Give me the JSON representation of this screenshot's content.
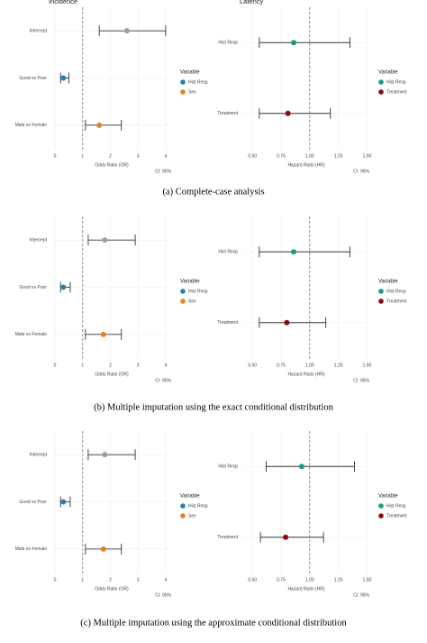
{
  "chart_data": [
    {
      "type": "forest",
      "title": "Incidence",
      "xlabel": "Odds Ratio (OR)",
      "note": "CI: 95%",
      "xlim": [
        -0.1,
        4.2
      ],
      "xticks": [
        0,
        1,
        2,
        3,
        4
      ],
      "refline": 1,
      "rows": [
        {
          "label": "Intercept",
          "estimate": 2.6,
          "lower": 1.6,
          "upper": 4.0,
          "color": "#9e9e9e"
        },
        {
          "label": "Good vs Poor",
          "estimate": 0.3,
          "lower": 0.2,
          "upper": 0.5,
          "color": "#2a7fb0"
        },
        {
          "label": "Male vs Female",
          "estimate": 1.6,
          "lower": 1.1,
          "upper": 2.4,
          "color": "#e6801e"
        }
      ],
      "legend_title": "Variable",
      "legend": [
        {
          "name": "Hist Resp",
          "color": "#2a7fb0"
        },
        {
          "name": "Sex",
          "color": "#e6801e"
        }
      ]
    },
    {
      "type": "forest",
      "title": "Latency",
      "xlabel": "Hazard Ratio (HR)",
      "note": "CI: 95%",
      "xlim": [
        0.42,
        1.52
      ],
      "xticks": [
        {
          "value": 0.5,
          "label": "0.50"
        },
        {
          "value": 0.75,
          "label": "0.75"
        },
        {
          "value": 1,
          "label": "1.00"
        },
        {
          "value": 1.25,
          "label": "1.25"
        },
        {
          "value": 1.5,
          "label": "1.50"
        }
      ],
      "refline": 1,
      "rows": [
        {
          "label": "Hist Resp",
          "estimate": 0.86,
          "lower": 0.56,
          "upper": 1.35,
          "color": "#1a9a86"
        },
        {
          "label": "Treatment",
          "estimate": 0.81,
          "lower": 0.56,
          "upper": 1.18,
          "color": "#8b0a0a"
        }
      ],
      "legend_title": "Variable",
      "legend": [
        {
          "name": "Hist Resp",
          "color": "#1a9a86"
        },
        {
          "name": "Treatment",
          "color": "#8b0a0a"
        }
      ]
    },
    {
      "type": "forest",
      "xlabel": "Odds Ratio (OR)",
      "note": "CI: 95%",
      "xlim": [
        -0.1,
        4.2
      ],
      "xticks": [
        0,
        1,
        2,
        3,
        4
      ],
      "refline": 1,
      "rows": [
        {
          "label": "Intercept",
          "estimate": 1.8,
          "lower": 1.2,
          "upper": 2.9,
          "color": "#9e9e9e"
        },
        {
          "label": "Good vs Poor",
          "estimate": 0.3,
          "lower": 0.2,
          "upper": 0.55,
          "color": "#2a7fb0"
        },
        {
          "label": "Male vs Female",
          "estimate": 1.75,
          "lower": 1.1,
          "upper": 2.4,
          "color": "#e6801e"
        }
      ],
      "legend_title": "Variable",
      "legend": [
        {
          "name": "Hist Resp",
          "color": "#2a7fb0"
        },
        {
          "name": "Sex",
          "color": "#e6801e"
        }
      ]
    },
    {
      "type": "forest",
      "xlabel": "Hazard Ratio (HR)",
      "note": "CI: 95%",
      "xlim": [
        0.42,
        1.52
      ],
      "xticks": [
        {
          "value": 0.5,
          "label": "0.50"
        },
        {
          "value": 0.75,
          "label": "0.75"
        },
        {
          "value": 1,
          "label": "1.00"
        },
        {
          "value": 1.25,
          "label": "1.25"
        },
        {
          "value": 1.5,
          "label": "1.50"
        }
      ],
      "refline": 1,
      "rows": [
        {
          "label": "Hist Resp",
          "estimate": 0.86,
          "lower": 0.56,
          "upper": 1.35,
          "color": "#1a9a86"
        },
        {
          "label": "Treatment",
          "estimate": 0.8,
          "lower": 0.56,
          "upper": 1.14,
          "color": "#8b0a0a"
        }
      ],
      "legend_title": "Variable",
      "legend": [
        {
          "name": "Hist Resp",
          "color": "#1a9a86"
        },
        {
          "name": "Treatment",
          "color": "#8b0a0a"
        }
      ]
    },
    {
      "type": "forest",
      "xlabel": "Odds Ratio (OR)",
      "note": "CI: 95%",
      "xlim": [
        -0.1,
        4.2
      ],
      "xticks": [
        0,
        1,
        2,
        3,
        4
      ],
      "refline": 1,
      "rows": [
        {
          "label": "Intercept",
          "estimate": 1.8,
          "lower": 1.2,
          "upper": 2.9,
          "color": "#9e9e9e"
        },
        {
          "label": "Good vs Poor",
          "estimate": 0.3,
          "lower": 0.2,
          "upper": 0.55,
          "color": "#2a7fb0"
        },
        {
          "label": "Male vs Female",
          "estimate": 1.75,
          "lower": 1.1,
          "upper": 2.4,
          "color": "#e6801e"
        }
      ],
      "legend_title": "Variable",
      "legend": [
        {
          "name": "Hist Resp",
          "color": "#2a7fb0"
        },
        {
          "name": "Sex",
          "color": "#e6801e"
        }
      ]
    },
    {
      "type": "forest",
      "xlabel": "Hazard Ratio (HR)",
      "note": "CI: 95%",
      "xlim": [
        0.42,
        1.52
      ],
      "xticks": [
        {
          "value": 0.5,
          "label": "0.50"
        },
        {
          "value": 0.75,
          "label": "0.75"
        },
        {
          "value": 1,
          "label": "1.00"
        },
        {
          "value": 1.25,
          "label": "1.25"
        },
        {
          "value": 1.5,
          "label": "1.50"
        }
      ],
      "refline": 1,
      "rows": [
        {
          "label": "Hist Resp",
          "estimate": 0.93,
          "lower": 0.62,
          "upper": 1.39,
          "color": "#1a9a86"
        },
        {
          "label": "Treatment",
          "estimate": 0.79,
          "lower": 0.57,
          "upper": 1.12,
          "color": "#8b0a0a"
        }
      ],
      "legend_title": "Variable",
      "legend": [
        {
          "name": "Hist Resp",
          "color": "#1a9a86"
        },
        {
          "name": "Treatment",
          "color": "#8b0a0a"
        }
      ]
    }
  ],
  "captions": [
    "(a) Complete-case analysis",
    "(b) Multiple imputation using the exact conditional distribution",
    "(c) Multiple imputation using the approximate conditional distribution"
  ]
}
